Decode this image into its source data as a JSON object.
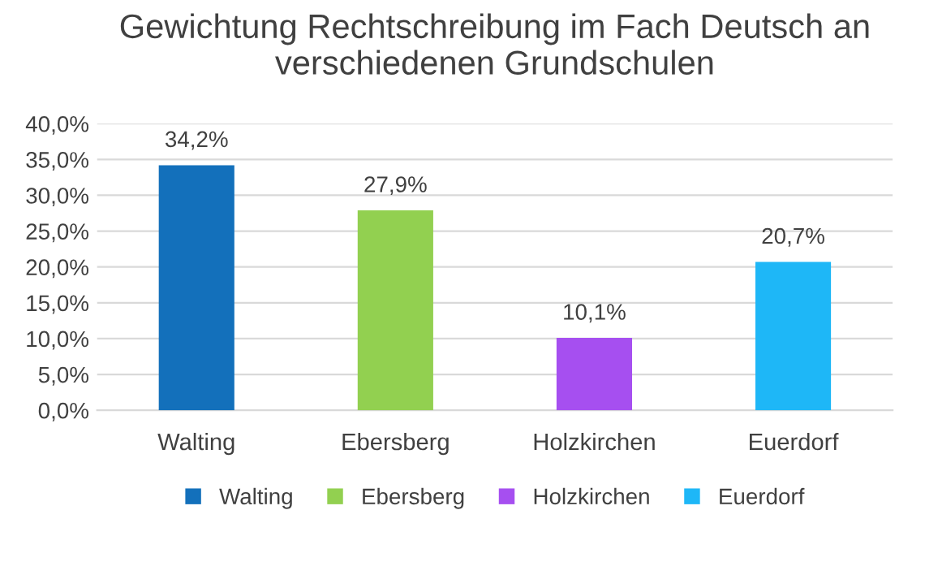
{
  "chart_data": {
    "type": "bar",
    "title": "Gewichtung Rechtschreibung im Fach Deutsch an verschiedenen Grundschulen",
    "categories": [
      "Walting",
      "Ebersberg",
      "Holzkirchen",
      "Euerdorf"
    ],
    "series": [
      {
        "name": "Walting",
        "color": "#1370bb",
        "values": [
          34.2,
          null,
          null,
          null
        ],
        "value_labels": [
          "34,2%",
          null,
          null,
          null
        ]
      },
      {
        "name": "Ebersberg",
        "color": "#92d050",
        "values": [
          null,
          27.9,
          null,
          null
        ],
        "value_labels": [
          null,
          "27,9%",
          null,
          null
        ]
      },
      {
        "name": "Holzkirchen",
        "color": "#a64ff0",
        "values": [
          null,
          null,
          10.1,
          null
        ],
        "value_labels": [
          null,
          null,
          "10,1%",
          null
        ]
      },
      {
        "name": "Euerdorf",
        "color": "#1eb7f7",
        "values": [
          null,
          null,
          null,
          20.7
        ],
        "value_labels": [
          null,
          null,
          null,
          "20,7%"
        ]
      }
    ],
    "ylim": [
      0,
      40
    ],
    "yticks": [
      {
        "value": 0,
        "label": "0,0%"
      },
      {
        "value": 5,
        "label": "5,0%"
      },
      {
        "value": 10,
        "label": "10,0%"
      },
      {
        "value": 15,
        "label": "15,0%"
      },
      {
        "value": 20,
        "label": "20,0%"
      },
      {
        "value": 25,
        "label": "25,0%"
      },
      {
        "value": 30,
        "label": "30,0%"
      },
      {
        "value": 35,
        "label": "35,0%"
      },
      {
        "value": 40,
        "label": "40,0%"
      }
    ],
    "grid": "y",
    "legend": "bottom"
  }
}
